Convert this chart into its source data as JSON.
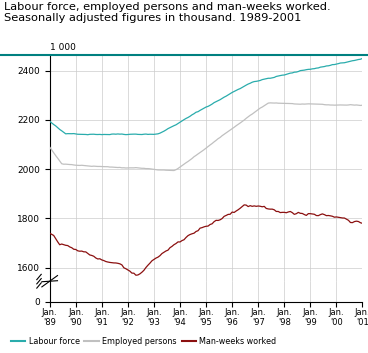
{
  "title_line1": "Labour force, employed persons and man-weeks worked.",
  "title_line2": "Seasonally adjusted figures in thousand. 1989-2001",
  "title_fontsize": 8.2,
  "colors": {
    "labour_force": "#2AACAC",
    "employed": "#C0C0C0",
    "man_weeks": "#8B1010",
    "grid": "#CCCCCC",
    "title_line": "#008080"
  },
  "yticks_main": [
    1600,
    1800,
    2000,
    2200,
    2400
  ],
  "ylim_main_lo": 1545,
  "ylim_main_hi": 2465,
  "n_points": 157,
  "seed_lf": 42,
  "seed_emp": 43,
  "seed_mw": 44
}
